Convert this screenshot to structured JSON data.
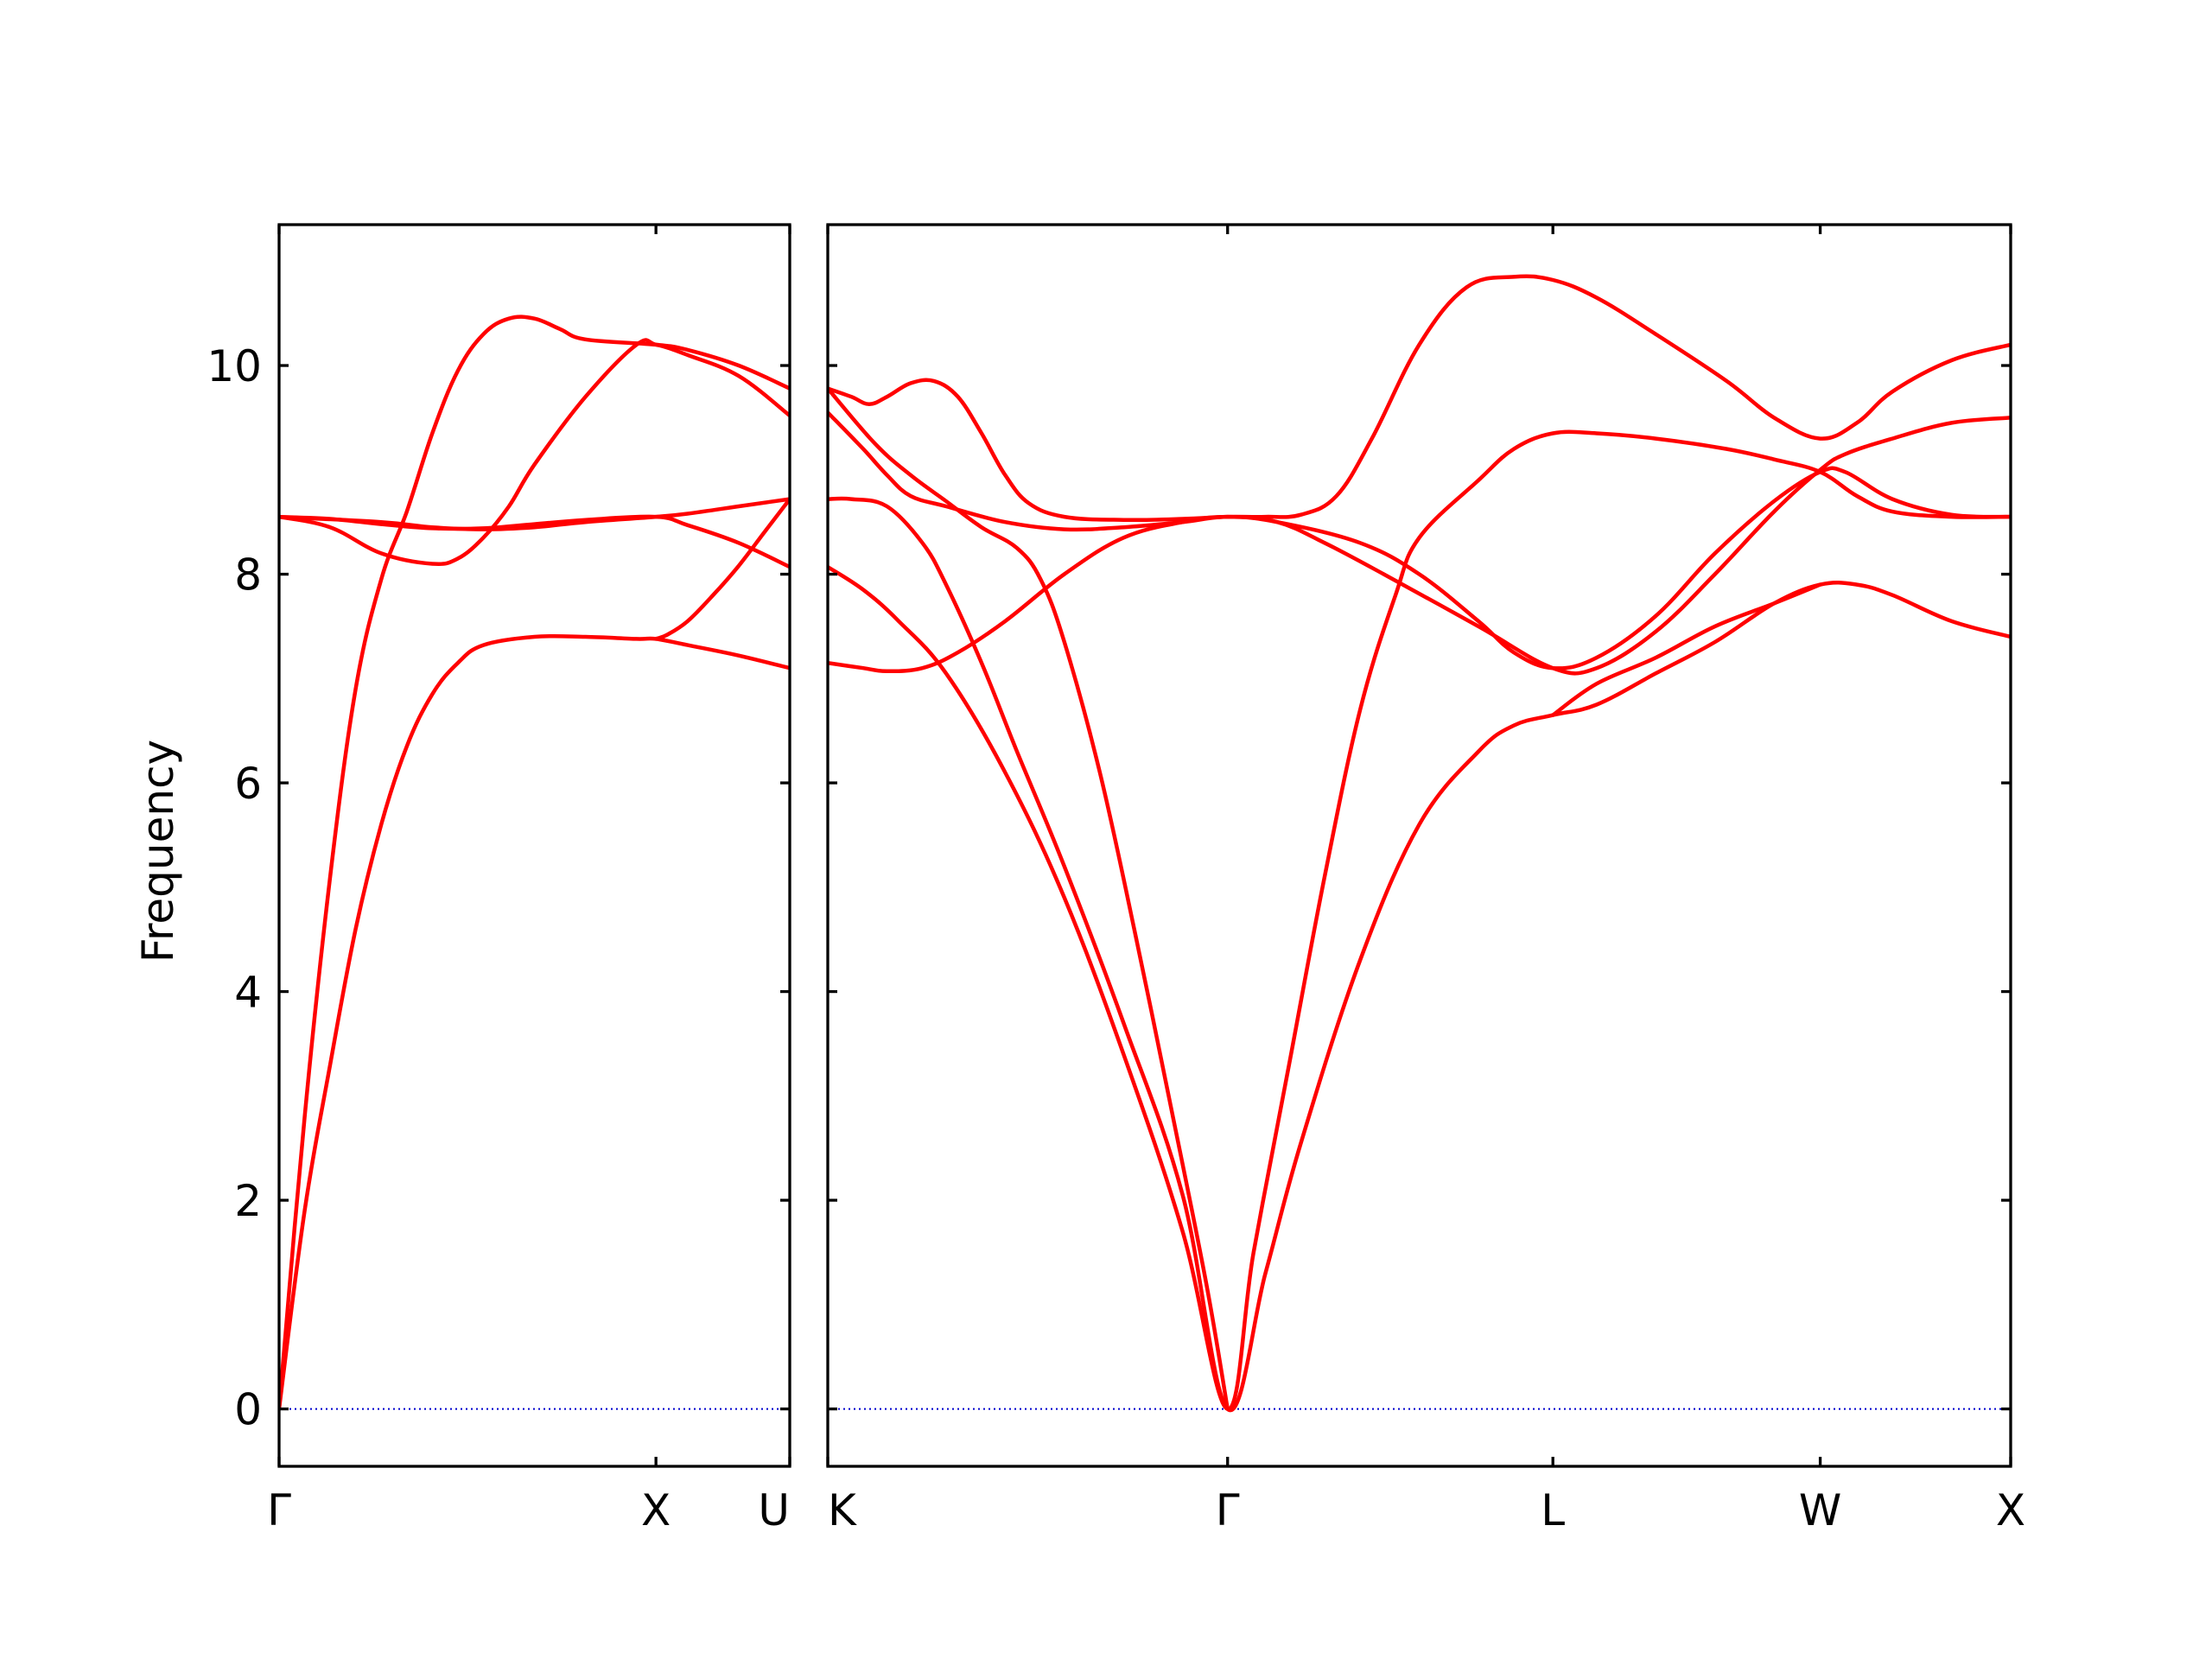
{
  "chart_data": {
    "type": "line",
    "ylabel": "Frequency",
    "ylim": [
      -0.55,
      11.35
    ],
    "yticks": [
      0,
      2,
      4,
      6,
      8,
      10
    ],
    "colors": {
      "band": "#ff0000",
      "zero_line": "#0000cc"
    },
    "zero_line": {
      "y": 0,
      "style": "dotted"
    },
    "grid": false,
    "panels": [
      {
        "name": "panel-gamma-x-u",
        "xlim": [
          0,
          1
        ],
        "xticks": [
          {
            "x": 0.0,
            "label": "Γ"
          },
          {
            "x": 0.738,
            "label": "X"
          },
          {
            "x": 1.0,
            "label": "U"
          }
        ],
        "series": [
          {
            "values": [
              [
                0,
                0
              ],
              [
                0.05,
                1.9
              ],
              [
                0.1,
                3.3
              ],
              [
                0.15,
                4.6
              ],
              [
                0.2,
                5.6
              ],
              [
                0.25,
                6.35
              ],
              [
                0.3,
                6.85
              ],
              [
                0.35,
                7.15
              ],
              [
                0.4,
                7.32
              ],
              [
                0.5,
                7.4
              ],
              [
                0.6,
                7.4
              ],
              [
                0.7,
                7.38
              ],
              [
                0.738,
                7.38
              ],
              [
                0.8,
                7.32
              ],
              [
                0.9,
                7.22
              ],
              [
                1.0,
                7.1
              ]
            ]
          },
          {
            "values": [
              [
                0,
                0
              ],
              [
                0.05,
                2.8
              ],
              [
                0.1,
                5.1
              ],
              [
                0.15,
                6.9
              ],
              [
                0.2,
                7.95
              ],
              [
                0.25,
                8.6
              ],
              [
                0.3,
                9.35
              ],
              [
                0.35,
                9.95
              ],
              [
                0.4,
                10.3
              ],
              [
                0.45,
                10.45
              ],
              [
                0.5,
                10.45
              ],
              [
                0.55,
                10.35
              ],
              [
                0.6,
                10.25
              ],
              [
                0.738,
                10.2
              ],
              [
                0.8,
                10.15
              ],
              [
                0.9,
                10.0
              ],
              [
                1.0,
                9.78
              ]
            ]
          },
          {
            "values": [
              [
                0,
                8.55
              ],
              [
                0.1,
                8.45
              ],
              [
                0.2,
                8.2
              ],
              [
                0.3,
                8.1
              ],
              [
                0.35,
                8.15
              ],
              [
                0.4,
                8.35
              ],
              [
                0.45,
                8.65
              ],
              [
                0.5,
                9.05
              ],
              [
                0.6,
                9.7
              ],
              [
                0.7,
                10.2
              ],
              [
                0.738,
                10.2
              ],
              [
                0.8,
                10.1
              ],
              [
                0.9,
                9.9
              ],
              [
                1.0,
                9.52
              ]
            ]
          },
          {
            "values": [
              [
                0,
                8.55
              ],
              [
                0.1,
                8.53
              ],
              [
                0.2,
                8.48
              ],
              [
                0.3,
                8.44
              ],
              [
                0.4,
                8.44
              ],
              [
                0.5,
                8.48
              ],
              [
                0.6,
                8.52
              ],
              [
                0.738,
                8.55
              ],
              [
                0.8,
                8.47
              ],
              [
                0.9,
                8.3
              ],
              [
                1.0,
                8.07
              ]
            ]
          },
          {
            "values": [
              [
                0,
                8.55
              ],
              [
                0.2,
                8.5
              ],
              [
                0.3,
                8.45
              ],
              [
                0.4,
                8.43
              ],
              [
                0.5,
                8.45
              ],
              [
                0.6,
                8.5
              ],
              [
                0.738,
                8.55
              ],
              [
                0.8,
                8.58
              ],
              [
                0.9,
                8.65
              ],
              [
                1.0,
                8.72
              ]
            ]
          },
          {
            "values": [
              [
                0.738,
                7.38
              ],
              [
                0.76,
                7.42
              ],
              [
                0.8,
                7.55
              ],
              [
                0.85,
                7.8
              ],
              [
                0.9,
                8.08
              ],
              [
                0.95,
                8.4
              ],
              [
                1.0,
                8.72
              ]
            ]
          }
        ]
      },
      {
        "name": "panel-k-gamma-l-w-x",
        "xlim": [
          0,
          1
        ],
        "xticks": [
          {
            "x": 0.0,
            "label": "K"
          },
          {
            "x": 0.338,
            "label": "Γ"
          },
          {
            "x": 0.613,
            "label": "L"
          },
          {
            "x": 0.839,
            "label": "W"
          },
          {
            "x": 1.0,
            "label": "X"
          }
        ],
        "series": [
          {
            "values": [
              [
                0,
                9.78
              ],
              [
                0.02,
                9.7
              ],
              [
                0.035,
                9.63
              ],
              [
                0.05,
                9.7
              ],
              [
                0.07,
                9.83
              ],
              [
                0.09,
                9.85
              ],
              [
                0.11,
                9.7
              ],
              [
                0.13,
                9.35
              ],
              [
                0.15,
                8.95
              ],
              [
                0.17,
                8.68
              ],
              [
                0.2,
                8.55
              ],
              [
                0.25,
                8.52
              ],
              [
                0.3,
                8.53
              ],
              [
                0.338,
                8.55
              ],
              [
                0.37,
                8.55
              ],
              [
                0.4,
                8.57
              ],
              [
                0.43,
                8.75
              ],
              [
                0.46,
                9.3
              ],
              [
                0.5,
                10.2
              ],
              [
                0.54,
                10.75
              ],
              [
                0.58,
                10.85
              ],
              [
                0.613,
                10.82
              ],
              [
                0.65,
                10.65
              ],
              [
                0.7,
                10.3
              ],
              [
                0.76,
                9.85
              ],
              [
                0.8,
                9.5
              ],
              [
                0.839,
                9.3
              ],
              [
                0.87,
                9.45
              ],
              [
                0.9,
                9.75
              ],
              [
                0.95,
                10.05
              ],
              [
                1.0,
                10.2
              ]
            ]
          },
          {
            "values": [
              [
                0,
                9.55
              ],
              [
                0.03,
                9.2
              ],
              [
                0.05,
                8.95
              ],
              [
                0.07,
                8.75
              ],
              [
                0.1,
                8.65
              ],
              [
                0.15,
                8.5
              ],
              [
                0.2,
                8.43
              ],
              [
                0.25,
                8.45
              ],
              [
                0.3,
                8.5
              ],
              [
                0.338,
                8.55
              ],
              [
                0.38,
                8.5
              ],
              [
                0.45,
                8.3
              ],
              [
                0.5,
                8.0
              ],
              [
                0.55,
                7.55
              ],
              [
                0.58,
                7.25
              ],
              [
                0.613,
                7.1
              ],
              [
                0.65,
                7.2
              ],
              [
                0.7,
                7.6
              ],
              [
                0.75,
                8.2
              ],
              [
                0.8,
                8.7
              ],
              [
                0.839,
                8.98
              ],
              [
                0.86,
                8.98
              ],
              [
                0.9,
                8.72
              ],
              [
                0.95,
                8.57
              ],
              [
                1.0,
                8.55
              ]
            ]
          },
          {
            "values": [
              [
                0,
                7.15
              ],
              [
                0.03,
                7.1
              ],
              [
                0.05,
                7.07
              ],
              [
                0.08,
                7.1
              ],
              [
                0.11,
                7.25
              ],
              [
                0.15,
                7.55
              ],
              [
                0.2,
                8.0
              ],
              [
                0.25,
                8.35
              ],
              [
                0.3,
                8.5
              ],
              [
                0.338,
                8.55
              ],
              [
                0.38,
                8.5
              ],
              [
                0.42,
                8.3
              ],
              [
                0.47,
                8.0
              ],
              [
                0.55,
                7.5
              ],
              [
                0.613,
                7.1
              ],
              [
                0.65,
                7.1
              ],
              [
                0.7,
                7.45
              ],
              [
                0.75,
                8.0
              ],
              [
                0.8,
                8.6
              ],
              [
                0.839,
                9.0
              ],
              [
                0.86,
                9.15
              ],
              [
                0.9,
                9.3
              ],
              [
                0.95,
                9.45
              ],
              [
                1.0,
                9.5
              ]
            ]
          },
          {
            "values": [
              [
                0,
                8.72
              ],
              [
                0.02,
                8.72
              ],
              [
                0.05,
                8.65
              ],
              [
                0.08,
                8.3
              ],
              [
                0.1,
                7.9
              ],
              [
                0.13,
                7.15
              ],
              [
                0.16,
                6.3
              ],
              [
                0.2,
                5.2
              ],
              [
                0.25,
                3.7
              ],
              [
                0.3,
                2.05
              ],
              [
                0.338,
                0
              ],
              [
                0.37,
                1.3
              ],
              [
                0.4,
                2.55
              ],
              [
                0.45,
                4.3
              ],
              [
                0.5,
                5.6
              ],
              [
                0.55,
                6.3
              ],
              [
                0.58,
                6.55
              ],
              [
                0.613,
                6.65
              ],
              [
                0.65,
                6.75
              ],
              [
                0.7,
                7.05
              ],
              [
                0.75,
                7.35
              ],
              [
                0.8,
                7.72
              ],
              [
                0.839,
                7.9
              ],
              [
                0.87,
                7.9
              ],
              [
                0.9,
                7.8
              ],
              [
                0.95,
                7.55
              ],
              [
                1.0,
                7.4
              ]
            ]
          },
          {
            "values": [
              [
                0,
                8.07
              ],
              [
                0.03,
                7.85
              ],
              [
                0.06,
                7.55
              ],
              [
                0.1,
                7.05
              ],
              [
                0.15,
                6.1
              ],
              [
                0.2,
                4.9
              ],
              [
                0.25,
                3.4
              ],
              [
                0.3,
                1.7
              ],
              [
                0.338,
                0
              ],
              [
                0.36,
                1.5
              ],
              [
                0.39,
                3.3
              ],
              [
                0.42,
                5.1
              ],
              [
                0.45,
                6.7
              ],
              [
                0.48,
                7.8
              ],
              [
                0.5,
                8.35
              ],
              [
                0.55,
                8.9
              ],
              [
                0.58,
                9.2
              ],
              [
                0.613,
                9.35
              ],
              [
                0.65,
                9.35
              ],
              [
                0.7,
                9.3
              ],
              [
                0.76,
                9.2
              ],
              [
                0.8,
                9.1
              ],
              [
                0.839,
                8.98
              ],
              [
                0.87,
                8.75
              ],
              [
                0.9,
                8.6
              ],
              [
                0.95,
                8.55
              ],
              [
                1.0,
                8.55
              ]
            ]
          },
          {
            "values": [
              [
                0,
                9.78
              ],
              [
                0.04,
                9.25
              ],
              [
                0.07,
                8.95
              ],
              [
                0.1,
                8.7
              ],
              [
                0.13,
                8.45
              ],
              [
                0.16,
                8.25
              ],
              [
                0.18,
                7.95
              ],
              [
                0.2,
                7.35
              ],
              [
                0.23,
                6.1
              ],
              [
                0.26,
                4.55
              ],
              [
                0.29,
                2.9
              ],
              [
                0.32,
                1.2
              ],
              [
                0.338,
                0
              ]
            ]
          },
          {
            "values": [
              [
                0.613,
                6.65
              ],
              [
                0.65,
                6.95
              ],
              [
                0.7,
                7.2
              ],
              [
                0.75,
                7.5
              ],
              [
                0.8,
                7.72
              ],
              [
                0.839,
                7.9
              ]
            ]
          }
        ]
      }
    ]
  }
}
